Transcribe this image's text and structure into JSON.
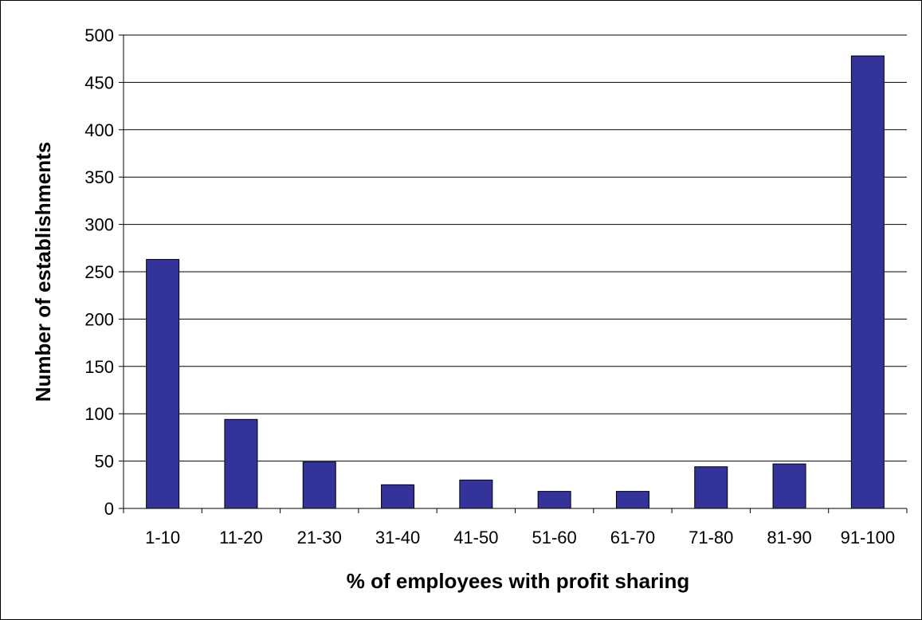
{
  "chart_data": {
    "type": "bar",
    "title": "",
    "xlabel": "% of employees with profit sharing",
    "ylabel": "Number of establishments",
    "categories": [
      "1-10",
      "11-20",
      "21-30",
      "31-40",
      "41-50",
      "51-60",
      "61-70",
      "71-80",
      "81-90",
      "91-100"
    ],
    "values": [
      263,
      94,
      49,
      25,
      30,
      18,
      18,
      44,
      47,
      478
    ],
    "ylim": [
      0,
      500
    ],
    "yticks": [
      0,
      50,
      100,
      150,
      200,
      250,
      300,
      350,
      400,
      450,
      500
    ],
    "grid": true,
    "legend": "none",
    "colors": {
      "bar_fill": "#333399",
      "bar_stroke": "#000000",
      "grid": "#000000",
      "background": "#ffffff"
    }
  }
}
